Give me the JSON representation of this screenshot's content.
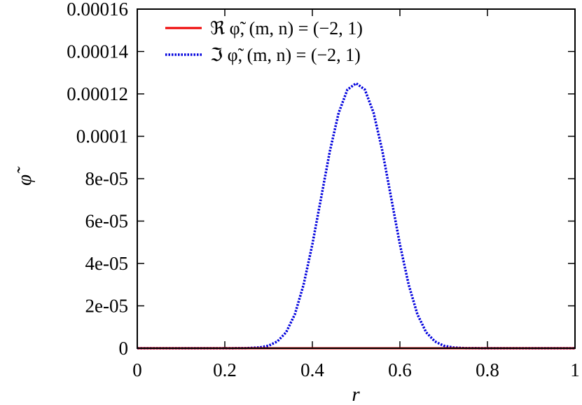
{
  "chart_data": {
    "type": "line",
    "xlabel": "r",
    "ylabel": "φ̃",
    "xlim": [
      0,
      1
    ],
    "ylim": [
      0,
      0.00016
    ],
    "xticks": [
      0,
      0.2,
      0.4,
      0.6,
      0.8,
      1
    ],
    "xtick_labels": [
      "0",
      "0.2",
      "0.4",
      "0.6",
      "0.8",
      "1"
    ],
    "yticks": [
      0,
      2e-05,
      4e-05,
      6e-05,
      8e-05,
      0.0001,
      0.00012,
      0.00014,
      0.00016
    ],
    "ytick_labels": [
      "0",
      "2e-05",
      "4e-05",
      "6e-05",
      "8e-05",
      "0.0001",
      "0.00012",
      "0.00014",
      "0.00016"
    ],
    "grid": false,
    "legend_position": "top-left",
    "series": [
      {
        "name": "ℜ φ̃, (m, n) = (−2, 1)",
        "color": "#ee0000",
        "style": "solid",
        "x": [
          0,
          0.1,
          0.2,
          0.3,
          0.4,
          0.5,
          0.6,
          0.7,
          0.8,
          0.9,
          1
        ],
        "y": [
          0,
          0,
          0,
          0,
          0,
          0,
          0,
          0,
          0,
          0,
          0
        ]
      },
      {
        "name": "ℑ φ̃, (m, n) = (−2, 1)",
        "color": "#0000dd",
        "style": "dotted",
        "x": [
          0,
          0.1,
          0.2,
          0.25,
          0.28,
          0.3,
          0.32,
          0.34,
          0.36,
          0.38,
          0.4,
          0.42,
          0.44,
          0.46,
          0.48,
          0.5,
          0.52,
          0.54,
          0.56,
          0.58,
          0.6,
          0.62,
          0.64,
          0.66,
          0.68,
          0.7,
          0.72,
          0.75,
          0.8,
          0.9,
          1
        ],
        "y": [
          0,
          0,
          0,
          5e-08,
          4e-07,
          1.2e-06,
          3.2e-06,
          7.5e-06,
          1.6e-05,
          3e-05,
          4.9e-05,
          7.1e-05,
          9.3e-05,
          0.000111,
          0.000122,
          0.000125,
          0.000122,
          0.000111,
          9.3e-05,
          7.1e-05,
          4.9e-05,
          3e-05,
          1.6e-05,
          7.5e-06,
          3.2e-06,
          1.2e-06,
          4e-07,
          5e-08,
          0,
          0,
          0
        ]
      }
    ]
  }
}
